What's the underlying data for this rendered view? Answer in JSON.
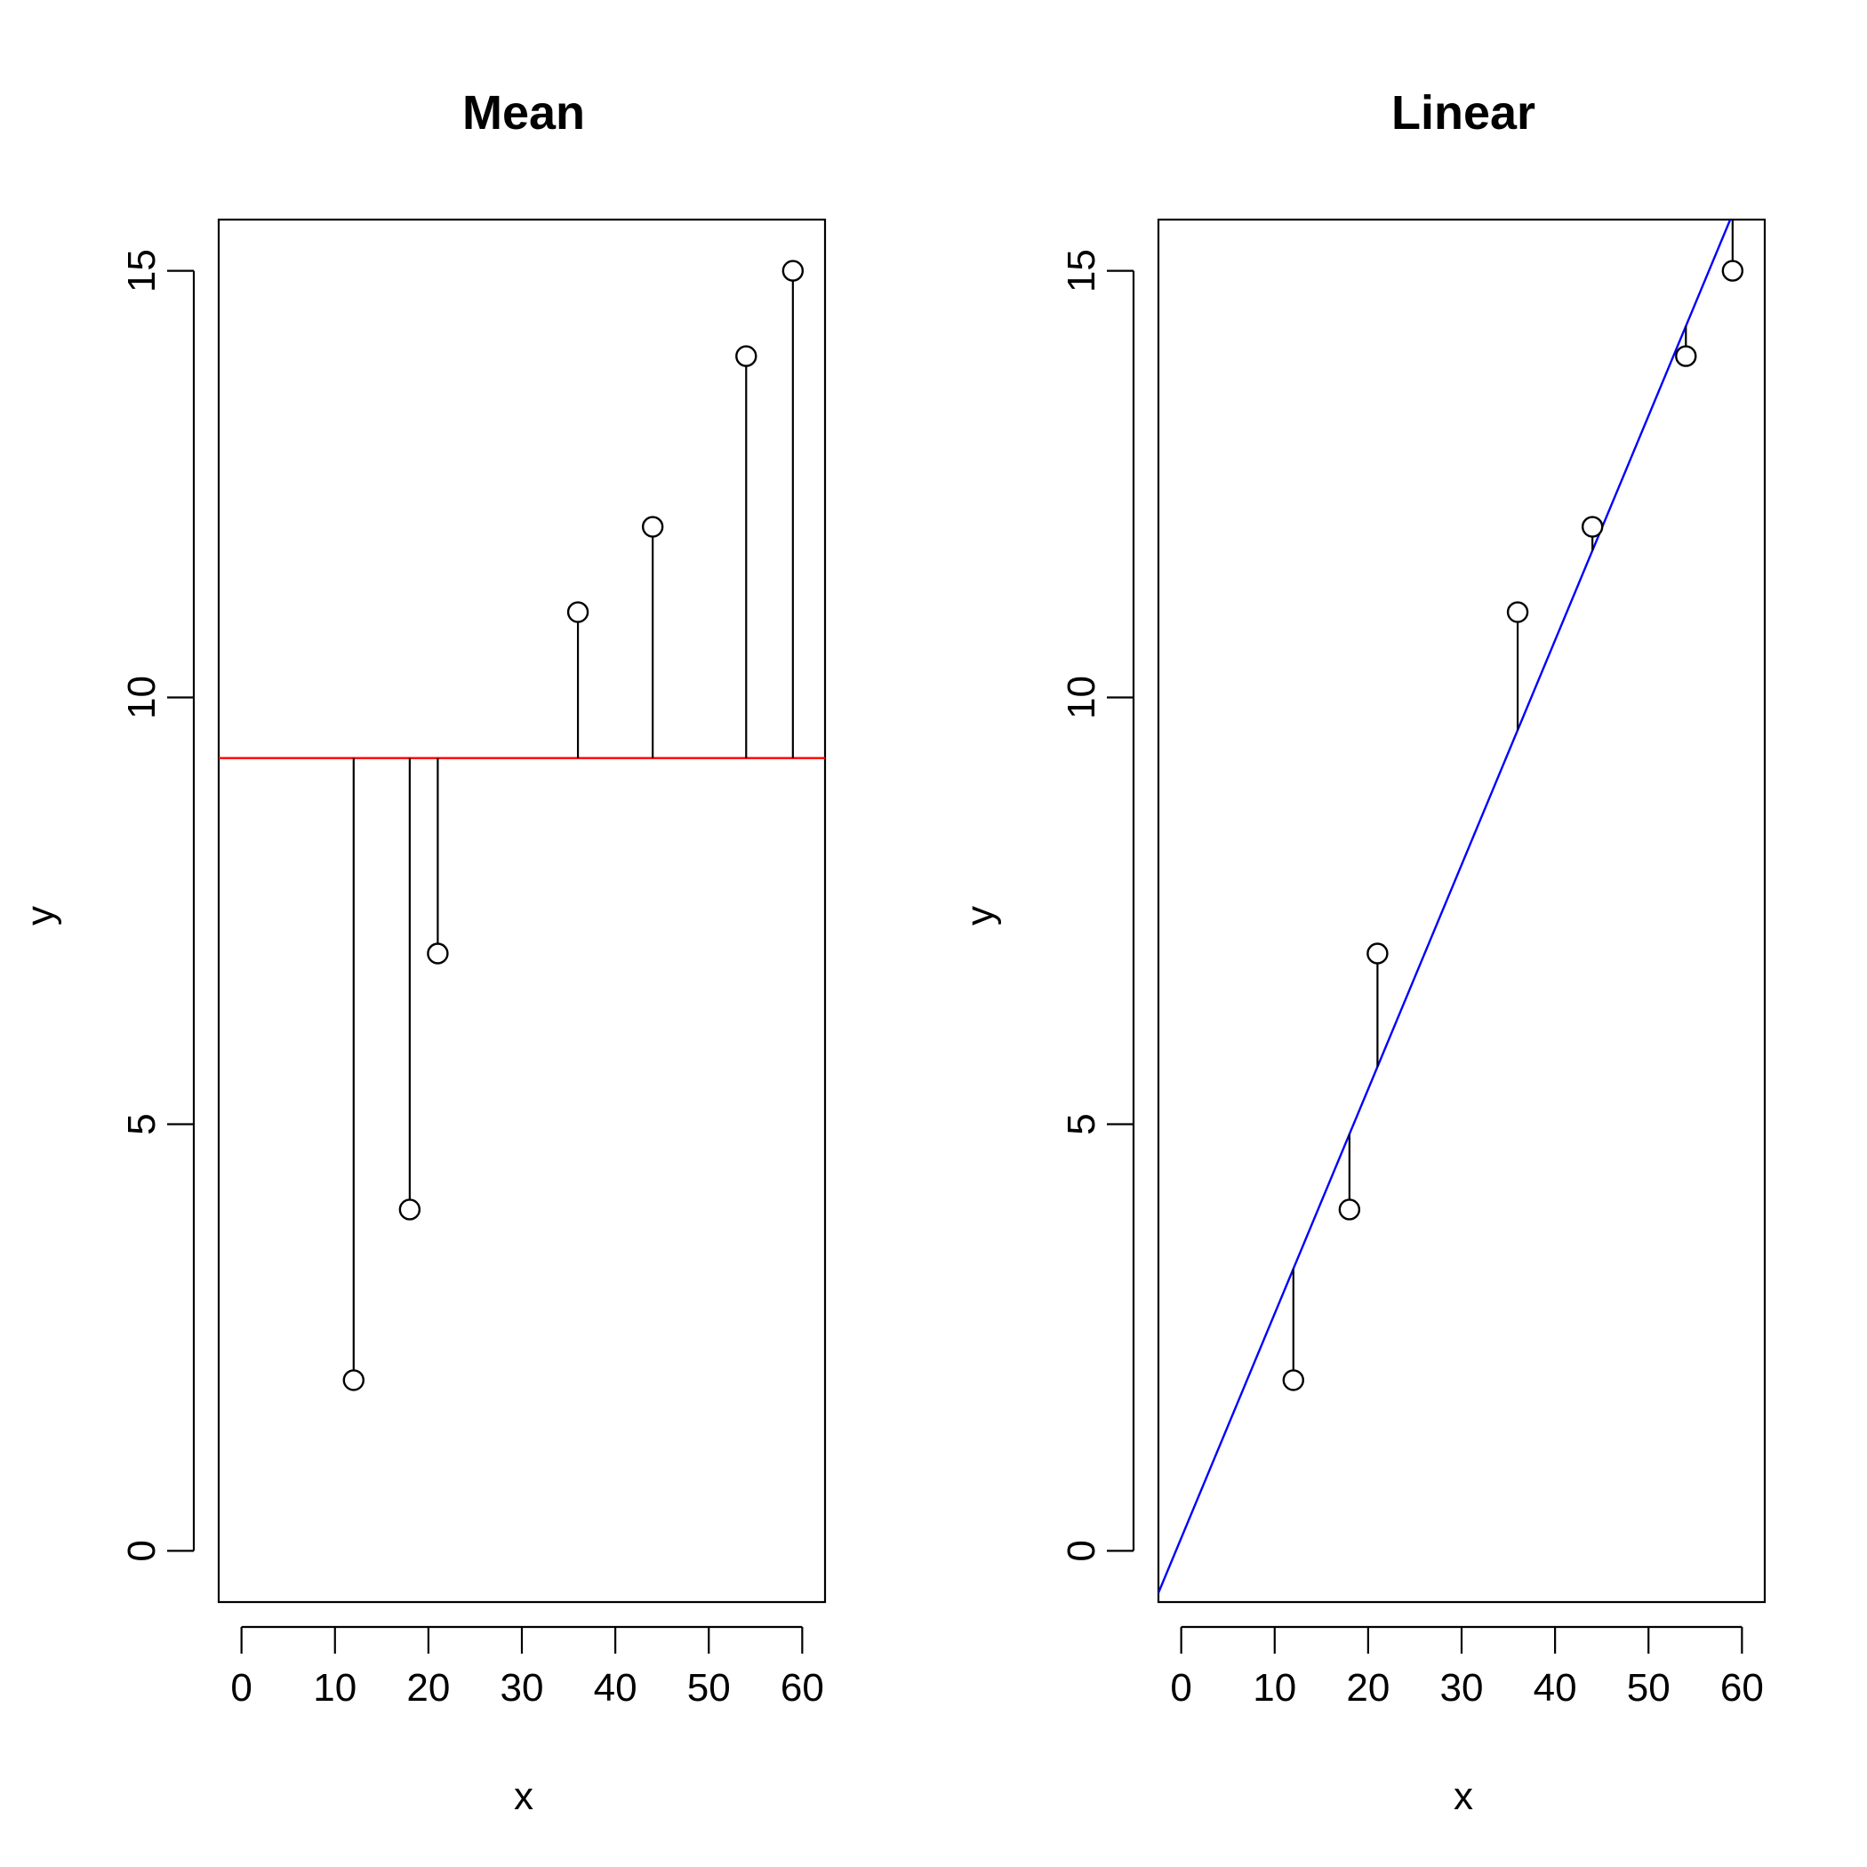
{
  "chart_data": [
    {
      "type": "scatter",
      "title": "Mean",
      "xlabel": "x",
      "ylabel": "y",
      "xlim": [
        -2.44,
        62.44
      ],
      "ylim": [
        -0.6,
        15.6
      ],
      "xticks": [
        0,
        10,
        20,
        30,
        40,
        50,
        60
      ],
      "yticks": [
        0,
        5,
        10,
        15
      ],
      "points": [
        {
          "x": 12,
          "y": 2
        },
        {
          "x": 18,
          "y": 4
        },
        {
          "x": 21,
          "y": 7
        },
        {
          "x": 36,
          "y": 11
        },
        {
          "x": 44,
          "y": 12
        },
        {
          "x": 54,
          "y": 14
        },
        {
          "x": 59,
          "y": 15
        }
      ],
      "fit_line": {
        "kind": "horizontal",
        "y": 9.29,
        "color": "#ff0000"
      },
      "residual_segments": true,
      "grid": false,
      "legend": false
    },
    {
      "type": "scatter",
      "title": "Linear",
      "xlabel": "x",
      "ylabel": "y",
      "xlim": [
        -2.44,
        62.44
      ],
      "ylim": [
        -0.6,
        15.6
      ],
      "xticks": [
        0,
        10,
        20,
        30,
        40,
        50,
        60
      ],
      "yticks": [
        0,
        5,
        10,
        15
      ],
      "points": [
        {
          "x": 12,
          "y": 2
        },
        {
          "x": 18,
          "y": 4
        },
        {
          "x": 21,
          "y": 7
        },
        {
          "x": 36,
          "y": 11
        },
        {
          "x": 44,
          "y": 12
        },
        {
          "x": 54,
          "y": 14
        },
        {
          "x": 59,
          "y": 15
        }
      ],
      "fit_line": {
        "kind": "regression",
        "intercept": 0.15,
        "slope": 0.263,
        "color": "#0000ff"
      },
      "residual_segments": true,
      "grid": false,
      "legend": false
    }
  ]
}
